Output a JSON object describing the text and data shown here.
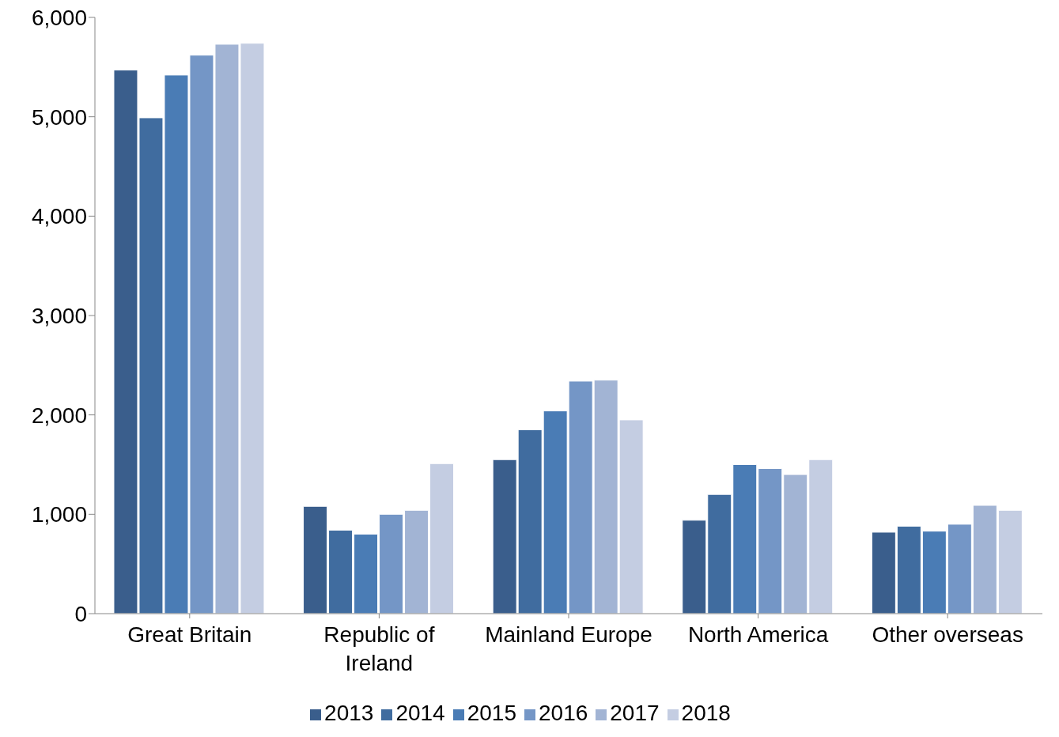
{
  "chart_data": {
    "type": "bar",
    "categories": [
      "Great Britain",
      "Republic of Ireland",
      "Mainland Europe",
      "North America",
      "Other overseas"
    ],
    "series": [
      {
        "name": "2013",
        "color": "#3a5e8c",
        "values": [
          5470,
          1080,
          1550,
          940,
          820
        ]
      },
      {
        "name": "2014",
        "color": "#406c9f",
        "values": [
          4990,
          840,
          1850,
          1200,
          880
        ]
      },
      {
        "name": "2015",
        "color": "#4a7cb5",
        "values": [
          5420,
          800,
          2040,
          1500,
          830
        ]
      },
      {
        "name": "2016",
        "color": "#7496c6",
        "values": [
          5620,
          1000,
          2340,
          1460,
          900
        ]
      },
      {
        "name": "2017",
        "color": "#a2b4d4",
        "values": [
          5730,
          1040,
          2350,
          1400,
          1090
        ]
      },
      {
        "name": "2018",
        "color": "#c4cde2",
        "values": [
          5740,
          1510,
          1950,
          1550,
          1040
        ]
      }
    ],
    "ylim": [
      0,
      6000
    ],
    "yticks": [
      0,
      {
        "value": 1000,
        "label": "1,000"
      },
      {
        "value": 2000,
        "label": "2,000"
      },
      {
        "value": 3000,
        "label": "3,000"
      },
      {
        "value": 4000,
        "label": "4,000"
      },
      {
        "value": 5000,
        "label": "5,000"
      },
      {
        "value": 6000,
        "label": "6,000"
      }
    ],
    "grid": false,
    "legend": "bottom"
  }
}
